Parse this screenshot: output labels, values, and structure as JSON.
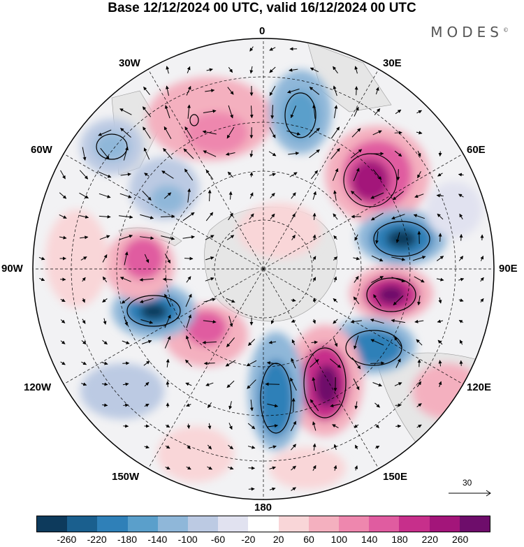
{
  "title": "Base 12/12/2024 00 UTC, valid 16/12/2024 00 UTC",
  "brand": "MODES",
  "brand_mark": "©",
  "longitude_labels": {
    "lon_0": "0",
    "lon_30e": "30E",
    "lon_60e": "60E",
    "lon_90e": "90E",
    "lon_120e": "120E",
    "lon_150e": "150E",
    "lon_180": "180",
    "lon_150w": "150W",
    "lon_120w": "120W",
    "lon_90w": "90W",
    "lon_60w": "60W",
    "lon_30w": "30W"
  },
  "reference_vector": "30",
  "colorbar": {
    "colors": [
      "#0d3a5c",
      "#1a5f8e",
      "#2f80b8",
      "#5a9fcb",
      "#8fb7d9",
      "#bccae3",
      "#e1e2f0",
      "#ffffff",
      "#f9d6d8",
      "#f4b0bf",
      "#ee87ae",
      "#e05ca0",
      "#c72f8b",
      "#a3157a",
      "#6e0d6b"
    ],
    "ticks": [
      "-260",
      "-220",
      "-180",
      "-140",
      "-100",
      "-60",
      "-20",
      "20",
      "60",
      "100",
      "140",
      "180",
      "220",
      "260"
    ]
  },
  "anomalies": [
    {
      "value": -220,
      "color": "#2a78b0"
    },
    {
      "value": 220,
      "color": "#a3157a"
    },
    {
      "value": 180,
      "color": "#c72f8b"
    },
    {
      "value": 100,
      "color": "#f4b0bf"
    },
    {
      "value": 60,
      "color": "#f9d6d8"
    },
    {
      "value": -100,
      "color": "#8fb7d9"
    },
    {
      "value": -60,
      "color": "#bccae3"
    }
  ]
}
